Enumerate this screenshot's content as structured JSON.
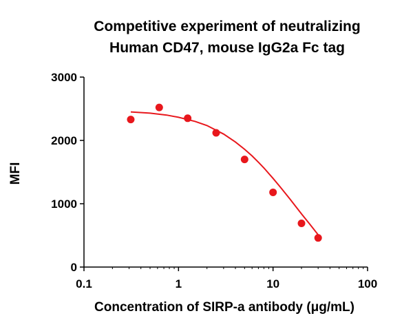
{
  "chart_data": {
    "type": "scatter",
    "title": [
      "Competitive experiment of neutralizing",
      "Human CD47, mouse IgG2a Fc tag"
    ],
    "xlabel": "Concentration of SIRP-a antibody (μg/mL)",
    "ylabel": "MFI",
    "x_scale": "log",
    "xlim": [
      0.1,
      100
    ],
    "ylim": [
      0,
      3000
    ],
    "x_ticks": [
      0.1,
      1,
      10,
      100
    ],
    "x_tick_labels": [
      "0.1",
      "1",
      "10",
      "100"
    ],
    "y_ticks": [
      0,
      1000,
      2000,
      3000
    ],
    "y_tick_labels": [
      "0",
      "1000",
      "2000",
      "3000"
    ],
    "grid": false,
    "legend": "none",
    "series": [
      {
        "x": [
          0.3125,
          0.625,
          1.25,
          2.5,
          5,
          10,
          20,
          30
        ],
        "y": [
          2330,
          2520,
          2350,
          2120,
          1700,
          1180,
          690,
          460
        ],
        "color": "#e8171c",
        "fit": "4PL"
      }
    ],
    "fit_curve": {
      "x": [
        0.3125,
        0.5,
        0.75,
        1,
        1.5,
        2,
        3,
        4,
        5,
        6,
        7,
        8,
        10,
        12,
        15,
        20,
        25,
        30
      ],
      "y": [
        2450,
        2430,
        2400,
        2365,
        2300,
        2235,
        2100,
        1975,
        1860,
        1755,
        1655,
        1565,
        1400,
        1260,
        1080,
        840,
        660,
        510
      ],
      "color": "#e8171c"
    }
  }
}
